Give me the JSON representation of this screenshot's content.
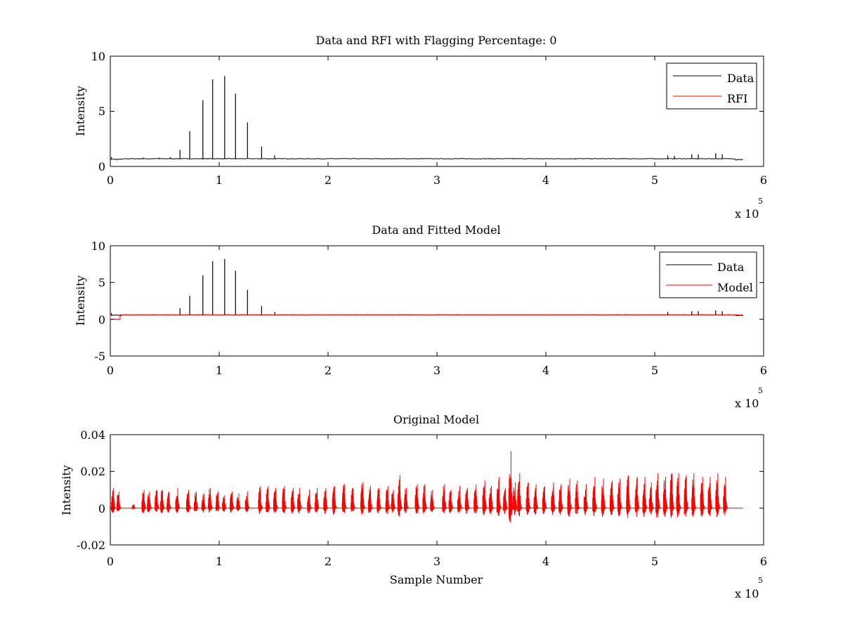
{
  "window": {
    "background": "#ffffff"
  },
  "chart_data": [
    {
      "type": "line",
      "title": "Data and RFI with Flagging Percentage: 0",
      "xlabel": "",
      "ylabel": "Intensity",
      "xlim": [
        0,
        6
      ],
      "ylim": [
        0,
        10
      ],
      "x_ticks": [
        "0",
        "1",
        "2",
        "3",
        "4",
        "5",
        "6"
      ],
      "y_ticks": [
        "0",
        "5",
        "10"
      ],
      "x_multiplier": {
        "base": "x 10",
        "exponent": "5"
      },
      "legend": {
        "placement": "top-right",
        "entries": [
          "Data",
          "RFI"
        ]
      },
      "series": [
        {
          "name": "Data",
          "color": "#000000",
          "baseline": 0.7,
          "spikes": [
            [
              0.64,
              1.5
            ],
            [
              0.73,
              3.2
            ],
            [
              0.85,
              6.0
            ],
            [
              0.94,
              7.9
            ],
            [
              1.05,
              8.2
            ],
            [
              1.15,
              6.6
            ],
            [
              1.26,
              4.0
            ],
            [
              1.39,
              1.8
            ],
            [
              1.51,
              1.0
            ],
            [
              0.01,
              0.85
            ],
            [
              0.3,
              0.8
            ],
            [
              0.45,
              0.8
            ],
            [
              0.55,
              0.85
            ],
            [
              5.12,
              1.0
            ],
            [
              5.18,
              0.95
            ],
            [
              5.34,
              1.1
            ],
            [
              5.4,
              1.1
            ],
            [
              5.56,
              1.2
            ],
            [
              5.62,
              1.1
            ],
            [
              3.7,
              0.75
            ],
            [
              4.27,
              0.75
            ],
            [
              4.45,
              0.75
            ],
            [
              4.72,
              0.75
            ]
          ]
        },
        {
          "name": "RFI",
          "color": "#ff0000",
          "values": []
        }
      ]
    },
    {
      "type": "line",
      "title": "Data and Fitted Model",
      "xlabel": "",
      "ylabel": "Intensity",
      "xlim": [
        0,
        6
      ],
      "ylim": [
        -5,
        10
      ],
      "x_ticks": [
        "0",
        "1",
        "2",
        "3",
        "4",
        "5",
        "6"
      ],
      "y_ticks": [
        "-5",
        "0",
        "5",
        "10"
      ],
      "x_multiplier": {
        "base": "x 10",
        "exponent": "5"
      },
      "legend": {
        "placement": "top-right",
        "entries": [
          "Data",
          "Model"
        ]
      },
      "series": [
        {
          "name": "Data",
          "color": "#000000",
          "baseline": 0.6,
          "spikes": [
            [
              0.64,
              1.5
            ],
            [
              0.73,
              3.2
            ],
            [
              0.85,
              6.0
            ],
            [
              0.94,
              7.9
            ],
            [
              1.05,
              8.2
            ],
            [
              1.15,
              6.6
            ],
            [
              1.26,
              4.0
            ],
            [
              1.39,
              1.8
            ],
            [
              1.51,
              1.0
            ],
            [
              0.01,
              0.85
            ],
            [
              5.12,
              1.0
            ],
            [
              5.34,
              1.1
            ],
            [
              5.4,
              1.1
            ],
            [
              5.56,
              1.2
            ],
            [
              5.62,
              1.1
            ]
          ]
        },
        {
          "name": "Model",
          "color": "#ff0000",
          "baseline": 0.6,
          "dip": {
            "from": 0.0,
            "to": 0.09,
            "value": 0.0
          }
        }
      ]
    },
    {
      "type": "line",
      "title": "Original Model",
      "xlabel": "Sample Number",
      "ylabel": "Intensity",
      "xlim": [
        0,
        6
      ],
      "ylim": [
        -0.02,
        0.04
      ],
      "x_ticks": [
        "0",
        "1",
        "2",
        "3",
        "4",
        "5",
        "6"
      ],
      "y_ticks": [
        "-0.02",
        "0",
        "0.02",
        "0.04"
      ],
      "x_multiplier": {
        "base": "x 10",
        "exponent": "5"
      },
      "series": [
        {
          "name": "Original Model",
          "color": "#ff0000",
          "baseline": 0.0,
          "bursts": [
            [
              0.03,
              0.011
            ],
            [
              0.08,
              0.009
            ],
            [
              0.22,
              0.002
            ],
            [
              0.31,
              0.01
            ],
            [
              0.36,
              0.009
            ],
            [
              0.43,
              0.01
            ],
            [
              0.48,
              0.01
            ],
            [
              0.54,
              0.009
            ],
            [
              0.62,
              0.011
            ],
            [
              0.72,
              0.01
            ],
            [
              0.79,
              0.009
            ],
            [
              0.86,
              0.008
            ],
            [
              0.92,
              0.011
            ],
            [
              0.99,
              0.009
            ],
            [
              1.05,
              0.007
            ],
            [
              1.12,
              0.009
            ],
            [
              1.18,
              0.008
            ],
            [
              1.26,
              0.009
            ],
            [
              1.38,
              0.012
            ],
            [
              1.45,
              0.012
            ],
            [
              1.52,
              0.011
            ],
            [
              1.6,
              0.012
            ],
            [
              1.68,
              0.011
            ],
            [
              1.74,
              0.011
            ],
            [
              1.83,
              0.01
            ],
            [
              1.9,
              0.011
            ],
            [
              1.98,
              0.011
            ],
            [
              2.06,
              0.012
            ],
            [
              2.15,
              0.013
            ],
            [
              2.23,
              0.011
            ],
            [
              2.32,
              0.014
            ],
            [
              2.39,
              0.012
            ],
            [
              2.47,
              0.011
            ],
            [
              2.55,
              0.012
            ],
            [
              2.6,
              0.01
            ],
            [
              2.66,
              0.018
            ],
            [
              2.72,
              0.011
            ],
            [
              2.82,
              0.013
            ],
            [
              2.89,
              0.013
            ],
            [
              2.96,
              0.01
            ],
            [
              3.07,
              0.013
            ],
            [
              3.13,
              0.01
            ],
            [
              3.21,
              0.012
            ],
            [
              3.28,
              0.011
            ],
            [
              3.36,
              0.013
            ],
            [
              3.44,
              0.015
            ],
            [
              3.5,
              0.012
            ],
            [
              3.57,
              0.017
            ],
            [
              3.63,
              0.011
            ],
            [
              3.68,
              0.031
            ],
            [
              3.72,
              0.014
            ],
            [
              3.76,
              0.019
            ],
            [
              3.84,
              0.014
            ],
            [
              3.91,
              0.013
            ],
            [
              3.99,
              0.012
            ],
            [
              4.07,
              0.014
            ],
            [
              4.14,
              0.013
            ],
            [
              4.22,
              0.016
            ],
            [
              4.29,
              0.015
            ],
            [
              4.37,
              0.013
            ],
            [
              4.45,
              0.017
            ],
            [
              4.53,
              0.016
            ],
            [
              4.61,
              0.015
            ],
            [
              4.68,
              0.016
            ],
            [
              4.76,
              0.018
            ],
            [
              4.84,
              0.017
            ],
            [
              4.91,
              0.017
            ],
            [
              4.97,
              0.014
            ],
            [
              5.03,
              0.019
            ],
            [
              5.1,
              0.017
            ],
            [
              5.16,
              0.019
            ],
            [
              5.22,
              0.019
            ],
            [
              5.29,
              0.018
            ],
            [
              5.36,
              0.019
            ],
            [
              5.44,
              0.017
            ],
            [
              5.51,
              0.017
            ],
            [
              5.58,
              0.019
            ],
            [
              5.65,
              0.017
            ]
          ]
        }
      ]
    }
  ]
}
